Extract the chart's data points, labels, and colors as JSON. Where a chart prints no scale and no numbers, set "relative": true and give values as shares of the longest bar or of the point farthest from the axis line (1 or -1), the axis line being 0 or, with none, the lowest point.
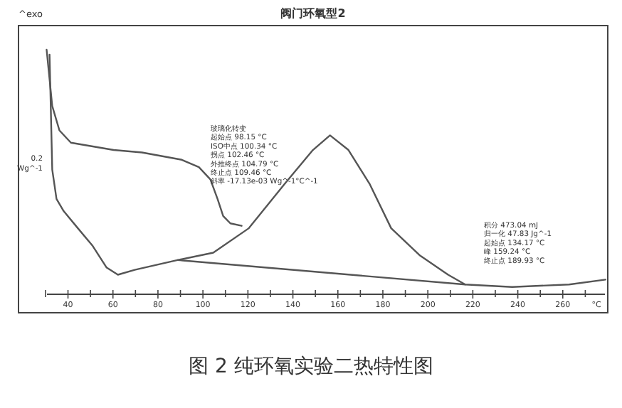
{
  "chart_data": {
    "type": "line",
    "relative": true,
    "title": "阀门环氧型2",
    "xlabel": "°C",
    "xlim": [
      18,
      280
    ],
    "xticks": [
      {
        "value": 30,
        "label": null
      },
      40,
      {
        "value": 50,
        "label": null
      },
      60,
      {
        "value": 70,
        "label": null
      },
      80,
      {
        "value": 90,
        "label": null
      },
      100,
      {
        "value": 110,
        "label": null
      },
      120,
      {
        "value": 130,
        "label": null
      },
      140,
      {
        "value": 150,
        "label": null
      },
      160,
      {
        "value": 170,
        "label": null
      },
      180,
      {
        "value": 190,
        "label": null
      },
      200,
      {
        "value": 210,
        "label": null
      },
      220,
      {
        "value": 230,
        "label": null
      },
      240,
      {
        "value": 250,
        "label": null
      },
      260,
      {
        "value": 270,
        "label": null
      }
    ],
    "grid": false,
    "line_style": "solid",
    "marker": "none",
    "series": [
      {
        "color": "#555555",
        "x": [
          30.5,
          33.0,
          36.2,
          41.3,
          60.3,
          72.9,
          90.6,
          98.2,
          103.3,
          106.5,
          109.0,
          112.2,
          117.2
        ],
        "values": [
          1.0,
          0.77,
          0.67,
          0.62,
          0.59,
          0.58,
          0.55,
          0.52,
          0.47,
          0.39,
          0.32,
          0.29,
          0.28
        ]
      },
      {
        "color": "#555555",
        "x": [
          31.8,
          33.0,
          34.9,
          38.1,
          44.4,
          50.8,
          57.1,
          62.2,
          69.7,
          88.7,
          104.6,
          120.4,
          136.2,
          148.9,
          156.5,
          164.7,
          174.2,
          183.7,
          196.3,
          209.0,
          216.6,
          237.5,
          262.8,
          279
        ],
        "values": [
          0.98,
          0.51,
          0.39,
          0.34,
          0.27,
          0.2,
          0.11,
          0.08,
          0.1,
          0.14,
          0.17,
          0.27,
          0.45,
          0.59,
          0.65,
          0.59,
          0.45,
          0.27,
          0.16,
          0.08,
          0.04,
          0.03,
          0.04,
          0.06
        ]
      },
      {
        "color": "#555555",
        "x": [
          88.7,
          216.6
        ],
        "values": [
          0.14,
          0.04
        ]
      }
    ],
    "annotations": [
      "^exo",
      "0.2\nWg^-1",
      "玻璃化转变",
      "起始点      98.15 °C",
      "ISO中点    100.34 °C",
      "拐点        102.46 °C",
      "外推终点  104.79 °C",
      "终止点    109.46 °C",
      "斜率        -17.13e-03 Wg^-1°C^-1",
      "积分        473.04 mJ",
      "归一化    47.83 Jg^-1",
      "起始点    134.17 °C",
      "峰          159.24 °C",
      "终止点    189.93 °C",
      "图 2 纯环氧实验二热特性图"
    ]
  }
}
